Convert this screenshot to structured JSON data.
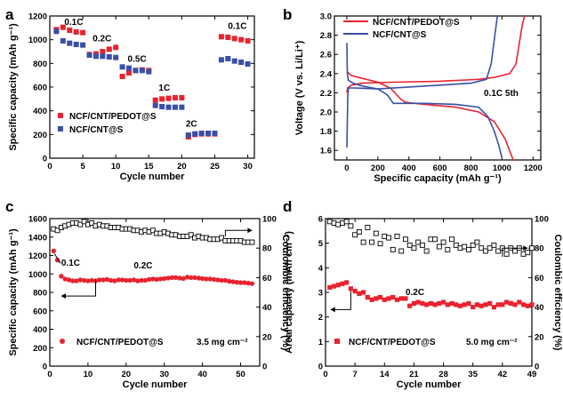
{
  "chart_data": [
    {
      "panel": "a",
      "type": "scatter",
      "xlabel": "Cycle number",
      "ylabel": "Specific capacity (mAh g⁻¹)",
      "xlim": [
        0,
        31
      ],
      "ylim": [
        0,
        1200
      ],
      "xticks": [
        0,
        5,
        10,
        15,
        20,
        25,
        30
      ],
      "yticks": [
        0,
        200,
        400,
        600,
        800,
        1000,
        1200
      ],
      "legend_position": "bottom-left",
      "annotations": [
        {
          "text": "0.1C",
          "x": 2.2,
          "y": 1125
        },
        {
          "text": "0.2C",
          "x": 6.5,
          "y": 985
        },
        {
          "text": "0.5C",
          "x": 11.8,
          "y": 812
        },
        {
          "text": "1C",
          "x": 16.5,
          "y": 570
        },
        {
          "text": "2C",
          "x": 20.6,
          "y": 265
        },
        {
          "text": "0.1C",
          "x": 27.0,
          "y": 1090
        }
      ],
      "series": [
        {
          "name": "NCF/CNT/PEDOT@S",
          "color": "#e8232f",
          "x": [
            1,
            2,
            3,
            4,
            5,
            6,
            7,
            8,
            9,
            10,
            11,
            12,
            13,
            14,
            15,
            16,
            17,
            18,
            19,
            20,
            21,
            22,
            23,
            24,
            25,
            26,
            27,
            28,
            29,
            30
          ],
          "y": [
            1085,
            1105,
            1080,
            1065,
            1060,
            875,
            880,
            900,
            920,
            935,
            690,
            720,
            740,
            745,
            740,
            490,
            500,
            505,
            510,
            510,
            180,
            200,
            205,
            205,
            205,
            1025,
            1020,
            1010,
            1000,
            990
          ]
        },
        {
          "name": "NCF/CNT@S",
          "color": "#3a4fa8",
          "x": [
            1,
            2,
            3,
            4,
            5,
            6,
            7,
            8,
            9,
            10,
            11,
            12,
            13,
            14,
            15,
            16,
            17,
            18,
            19,
            20,
            21,
            22,
            23,
            24,
            25,
            26,
            27,
            28,
            29,
            30
          ],
          "y": [
            1070,
            990,
            970,
            960,
            955,
            870,
            860,
            860,
            855,
            850,
            770,
            760,
            740,
            740,
            730,
            445,
            435,
            430,
            430,
            430,
            195,
            205,
            210,
            210,
            210,
            830,
            840,
            820,
            810,
            795
          ]
        }
      ]
    },
    {
      "panel": "b",
      "type": "line",
      "xlabel": "Specific capacity (mAh g⁻¹)",
      "ylabel": "Voltage (V vs. Li/Li⁺)",
      "xlim": [
        -80,
        1250
      ],
      "ylim": [
        1.5,
        3.0
      ],
      "xticks": [
        0,
        200,
        400,
        600,
        800,
        1000,
        1200
      ],
      "yticks": [
        1.6,
        1.8,
        2.0,
        2.2,
        2.4,
        2.6,
        2.8,
        3.0
      ],
      "legend_position": "top-left",
      "annotation": "0.1C  5th",
      "series": [
        {
          "name": "NCF/CNT/PEDOT@S",
          "color": "#e8232f",
          "charge": [
            [
              0,
              2.2
            ],
            [
              5,
              2.25
            ],
            [
              30,
              2.28
            ],
            [
              100,
              2.3
            ],
            [
              300,
              2.31
            ],
            [
              600,
              2.32
            ],
            [
              850,
              2.34
            ],
            [
              950,
              2.36
            ],
            [
              1050,
              2.4
            ],
            [
              1090,
              2.5
            ],
            [
              1110,
              2.7
            ],
            [
              1130,
              2.9
            ],
            [
              1145,
              3.0
            ]
          ],
          "discharge": [
            [
              0,
              2.42
            ],
            [
              30,
              2.38
            ],
            [
              100,
              2.35
            ],
            [
              200,
              2.31
            ],
            [
              280,
              2.25
            ],
            [
              350,
              2.13
            ],
            [
              380,
              2.1
            ],
            [
              500,
              2.08
            ],
            [
              700,
              2.05
            ],
            [
              850,
              2.0
            ],
            [
              950,
              1.9
            ],
            [
              1020,
              1.72
            ],
            [
              1060,
              1.55
            ],
            [
              1075,
              1.49
            ]
          ]
        },
        {
          "name": "NCF/CNT@S",
          "color": "#3a4fa8",
          "charge": [
            [
              0,
              1.63
            ],
            [
              3,
              1.9
            ],
            [
              6,
              2.15
            ],
            [
              10,
              2.25
            ],
            [
              50,
              2.25
            ],
            [
              200,
              2.24
            ],
            [
              400,
              2.26
            ],
            [
              600,
              2.28
            ],
            [
              800,
              2.3
            ],
            [
              900,
              2.34
            ],
            [
              930,
              2.5
            ],
            [
              950,
              2.75
            ],
            [
              970,
              3.0
            ]
          ],
          "discharge": [
            [
              0,
              2.72
            ],
            [
              3,
              2.4
            ],
            [
              10,
              2.33
            ],
            [
              40,
              2.3
            ],
            [
              100,
              2.27
            ],
            [
              200,
              2.24
            ],
            [
              260,
              2.18
            ],
            [
              300,
              2.09
            ],
            [
              500,
              2.09
            ],
            [
              700,
              2.08
            ],
            [
              850,
              2.05
            ],
            [
              910,
              1.95
            ],
            [
              950,
              1.8
            ],
            [
              980,
              1.65
            ],
            [
              1000,
              1.52
            ]
          ]
        }
      ]
    },
    {
      "panel": "c",
      "type": "scatter",
      "xlabel": "Cycle number",
      "ylabel": "Specific capacity (mAh g⁻¹)",
      "y2label": "Coulombic efficiency (%)",
      "xlim": [
        0,
        55
      ],
      "ylim": [
        0,
        1600
      ],
      "y2lim": [
        0,
        100
      ],
      "xticks": [
        0,
        10,
        20,
        30,
        40,
        50
      ],
      "yticks": [
        0,
        200,
        400,
        600,
        800,
        1000,
        1200,
        1400,
        1600
      ],
      "y2ticks": [
        0,
        20,
        40,
        60,
        80,
        100
      ],
      "legend_position": "bottom-left",
      "annotations": [
        "0.1C",
        "0.2C"
      ],
      "loading_label": "3.5 mg cm⁻²",
      "series": [
        {
          "name": "NCF/CNT/PEDOT@S",
          "color": "#e8232f",
          "values": [
            1250,
            1150,
            975,
            945,
            935,
            925,
            925,
            935,
            930,
            925,
            930,
            925,
            935,
            935,
            940,
            930,
            925,
            935,
            935,
            930,
            930,
            935,
            925,
            930,
            930,
            940,
            945,
            940,
            945,
            950,
            955,
            960,
            960,
            955,
            950,
            965,
            960,
            960,
            955,
            950,
            945,
            945,
            940,
            935,
            930,
            930,
            920,
            915,
            910,
            905,
            905,
            900,
            895
          ]
        },
        {
          "name": "Coulombic efficiency",
          "color": "#000000",
          "values": [
            93,
            92,
            94,
            95,
            96,
            97,
            97,
            96,
            98,
            96,
            97,
            95,
            96,
            95,
            95,
            94,
            94,
            94,
            93,
            93,
            93,
            92,
            92,
            91,
            92,
            91,
            92,
            90,
            90,
            91,
            90,
            89,
            89,
            88,
            88,
            88,
            89,
            87,
            88,
            87,
            87,
            86,
            86,
            86,
            87,
            85,
            85,
            85,
            85,
            85,
            84,
            84,
            84
          ]
        }
      ]
    },
    {
      "panel": "d",
      "type": "scatter",
      "xlabel": "Cycle number",
      "ylabel": "Areal capacity (mAh cm⁻²)",
      "y2label": "Coulombic efficiency (%)",
      "xlim": [
        0,
        49
      ],
      "ylim": [
        0,
        6
      ],
      "y2lim": [
        0,
        100
      ],
      "xticks": [
        0,
        7,
        14,
        21,
        28,
        35,
        42,
        49
      ],
      "yticks": [
        0,
        1,
        2,
        3,
        4,
        5,
        6
      ],
      "y2ticks": [
        0,
        20,
        40,
        60,
        80,
        100
      ],
      "legend_position": "bottom-left",
      "annotations": [
        "0.2C"
      ],
      "loading_label": "5.0 mg cm⁻²",
      "series": [
        {
          "name": "NCF/CNT/PEDOT@S",
          "color": "#e8232f",
          "values": [
            3.2,
            3.25,
            3.3,
            3.35,
            3.4,
            3.15,
            3.05,
            2.95,
            3.0,
            2.8,
            2.7,
            2.75,
            2.8,
            2.7,
            2.75,
            2.8,
            2.7,
            2.75,
            2.75,
            2.45,
            2.55,
            2.6,
            2.55,
            2.5,
            2.55,
            2.5,
            2.55,
            2.6,
            2.5,
            2.55,
            2.5,
            2.45,
            2.5,
            2.55,
            2.4,
            2.5,
            2.45,
            2.5,
            2.55,
            2.4,
            2.5,
            2.5,
            2.6,
            2.55,
            2.5,
            2.6,
            2.5,
            2.45,
            2.5
          ]
        },
        {
          "name": "Coulombic efficiency",
          "color": "#000000",
          "values": [
            98,
            97,
            96,
            97,
            98,
            95,
            89,
            91,
            84,
            94,
            84,
            90,
            83,
            88,
            87,
            79,
            88,
            78,
            86,
            82,
            80,
            84,
            82,
            78,
            86,
            86,
            81,
            84,
            79,
            86,
            82,
            80,
            81,
            79,
            82,
            84,
            80,
            78,
            80,
            82,
            78,
            80,
            76,
            80,
            78,
            80,
            76,
            77,
            80
          ]
        }
      ]
    }
  ]
}
